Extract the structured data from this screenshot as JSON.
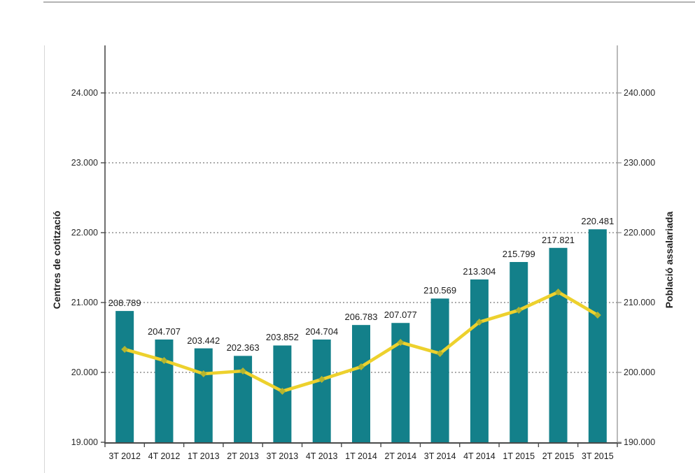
{
  "chart_data": {
    "type": "combo-bar-line",
    "title": "",
    "categories": [
      "3T 2012",
      "4T 2012",
      "1T 2013",
      "2T 2013",
      "3T 2013",
      "4T 2013",
      "1T 2014",
      "2T 2014",
      "3T 2014",
      "4T 2014",
      "1T 2015",
      "2T 2015",
      "3T 2015"
    ],
    "series": [
      {
        "name": "Població assalariada",
        "type": "bar",
        "axis": "right",
        "values": [
          208789,
          204707,
          203442,
          202363,
          203852,
          204704,
          206783,
          207077,
          210569,
          213304,
          215799,
          217821,
          220481
        ],
        "labels": [
          "208.789",
          "204.707",
          "203.442",
          "202.363",
          "203.852",
          "204.704",
          "206.783",
          "207.077",
          "210.569",
          "213.304",
          "215.799",
          "217.821",
          "220.481"
        ],
        "color": "#13808a"
      },
      {
        "name": "Centres de cotització",
        "type": "line",
        "axis": "left",
        "values": [
          20330,
          20170,
          19980,
          20020,
          19730,
          19900,
          20080,
          20430,
          20270,
          20720,
          20890,
          21150,
          20820
        ],
        "color": "#edd12d",
        "marker_color": "#b5b52e"
      }
    ],
    "left_axis": {
      "title": "Centres de cotització",
      "min": 19000,
      "tick_step": 1000,
      "ticks": [
        "19.000",
        "20.000",
        "21.000",
        "22.000",
        "23.000",
        "24.000"
      ]
    },
    "right_axis": {
      "title": "Població assalariada",
      "min": 190000,
      "tick_step": 10000,
      "ticks": [
        "190.000",
        "200.000",
        "210.000",
        "220.000",
        "230.000",
        "240.000"
      ]
    },
    "grid": {
      "style": "dotted",
      "color": "#8f8f8f",
      "orientation": "horizontal"
    },
    "legend": "none"
  }
}
